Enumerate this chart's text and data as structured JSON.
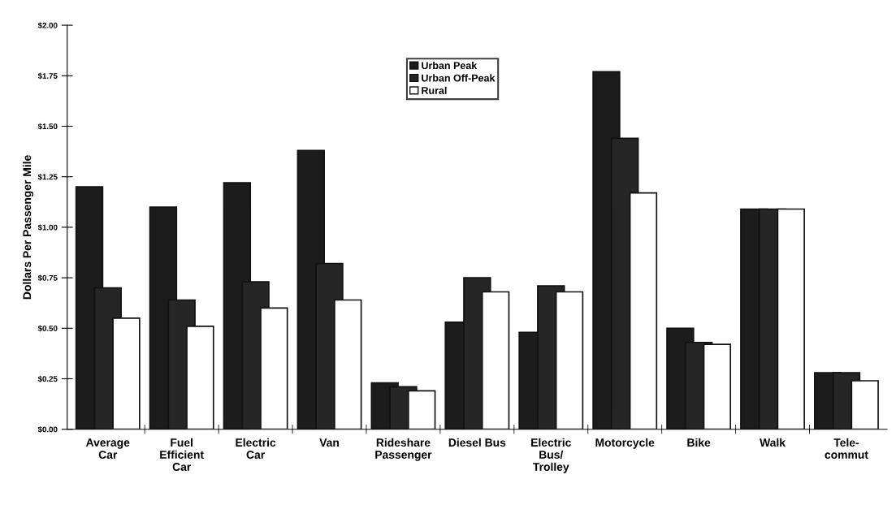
{
  "chart_data": {
    "type": "bar",
    "ylabel": "Dollars Per Passenger Mile",
    "categories": [
      "Average\nCar",
      "Fuel\nEfficient\nCar",
      "Electric\nCar",
      "Van",
      "Rideshare\nPassenger",
      "Diesel Bus",
      "Electric\nBus/\nTrolley",
      "Motorcycle",
      "Bike",
      "Walk",
      "Tele-\ncommut"
    ],
    "series": [
      {
        "name": "Urban Peak",
        "color": "#1c1c1c",
        "values": [
          1.2,
          1.1,
          1.22,
          1.38,
          0.23,
          0.53,
          0.48,
          1.77,
          0.5,
          1.09,
          0.28
        ]
      },
      {
        "name": "Urban Off-Peak",
        "color": "#262626",
        "values": [
          0.7,
          0.64,
          0.73,
          0.82,
          0.21,
          0.75,
          0.71,
          1.44,
          0.43,
          1.09,
          0.28
        ]
      },
      {
        "name": "Rural",
        "color": "#ffffff",
        "values": [
          0.55,
          0.51,
          0.6,
          0.64,
          0.19,
          0.68,
          0.68,
          1.17,
          0.42,
          1.09,
          0.24
        ]
      }
    ],
    "ylim": [
      0,
      2.0
    ],
    "yticks": [
      {
        "value": 0,
        "label": "$0.00"
      },
      {
        "value": 0.25,
        "label": "$0.25"
      },
      {
        "value": 0.5,
        "label": "$0.50"
      },
      {
        "value": 0.75,
        "label": "$0.75"
      },
      {
        "value": 1.0,
        "label": "$1.00"
      },
      {
        "value": 1.25,
        "label": "$1.25"
      },
      {
        "value": 1.5,
        "label": "$1.50"
      },
      {
        "value": 1.75,
        "label": "$1.75"
      },
      {
        "value": 2.0,
        "label": "$2.00"
      }
    ],
    "grid": false,
    "legend": "top"
  }
}
